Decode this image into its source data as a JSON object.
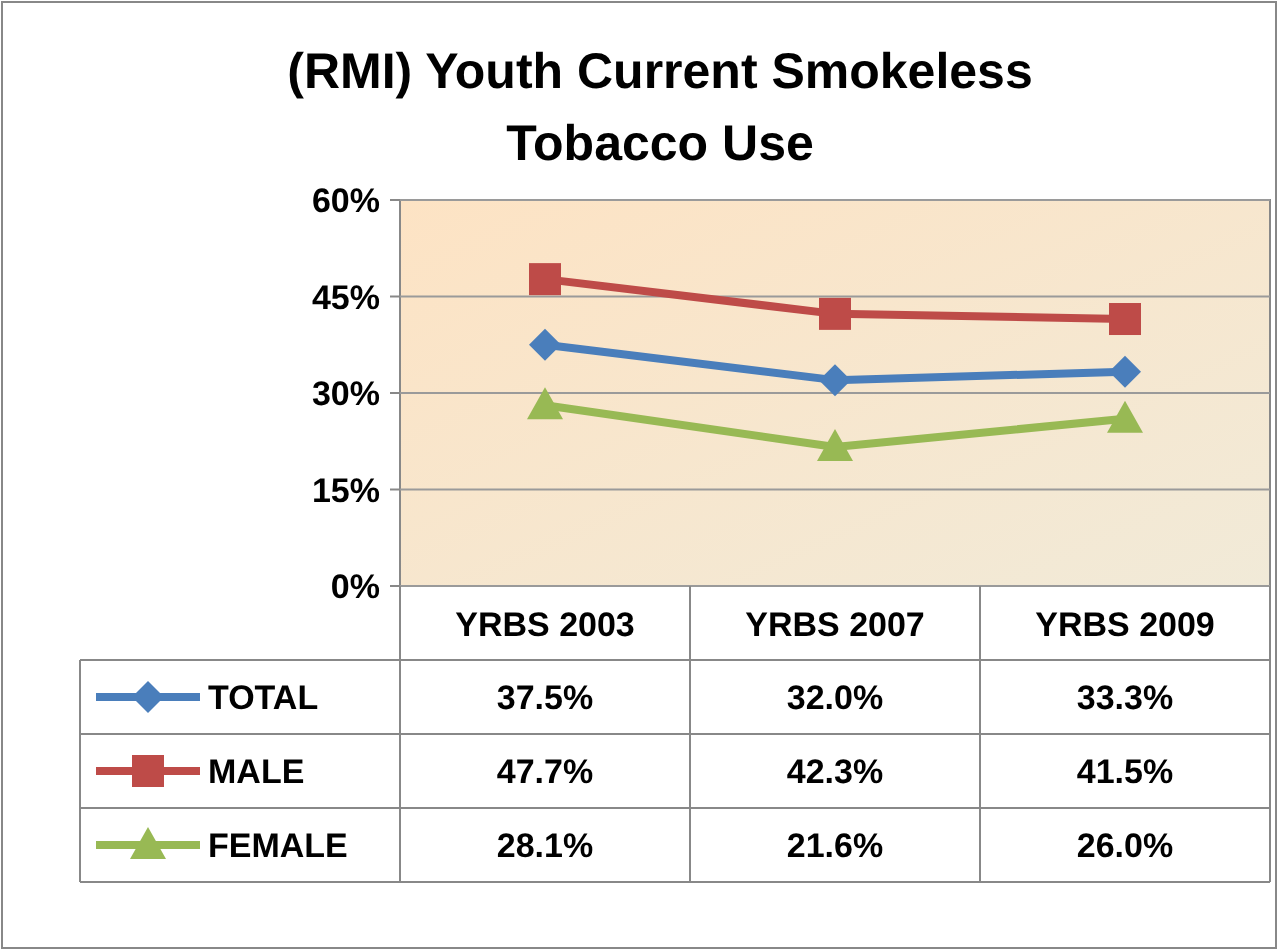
{
  "chart_data": {
    "type": "line",
    "title": "(RMI) Youth Current Smokeless Tobacco Use",
    "categories": [
      "YRBS 2003",
      "YRBS 2007",
      "YRBS 2009"
    ],
    "series": [
      {
        "name": "TOTAL",
        "color": "#4a7ebb",
        "marker": "diamond",
        "values": [
          37.5,
          32.0,
          33.3
        ],
        "value_labels": [
          "37.5%",
          "32.0%",
          "33.3%"
        ]
      },
      {
        "name": "MALE",
        "color": "#be4b48",
        "marker": "square",
        "values": [
          47.7,
          42.3,
          41.5
        ],
        "value_labels": [
          "47.7%",
          "42.3%",
          "41.5%"
        ]
      },
      {
        "name": "FEMALE",
        "color": "#98b954",
        "marker": "triangle",
        "values": [
          28.1,
          21.6,
          26.0
        ],
        "value_labels": [
          "28.1%",
          "21.6%",
          "26.0%"
        ]
      }
    ],
    "ylim": [
      0,
      60
    ],
    "yticks": [
      {
        "value": 0,
        "label": "0%"
      },
      {
        "value": 15,
        "label": "15%"
      },
      {
        "value": 30,
        "label": "30%"
      },
      {
        "value": 45,
        "label": "45%"
      },
      {
        "value": 60,
        "label": "60%"
      }
    ],
    "grid": "y",
    "legend": "bottom left",
    "line_style": "solid"
  }
}
